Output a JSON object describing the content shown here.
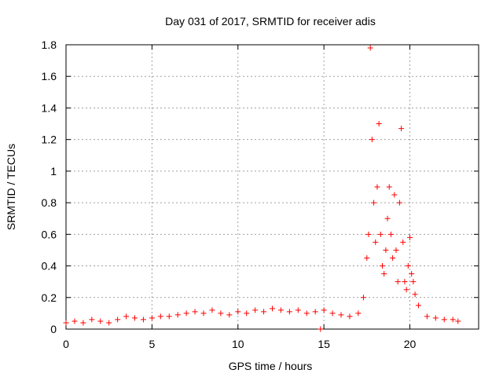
{
  "chart_data": {
    "type": "scatter",
    "title": "Day 031 of 2017, SRMTID for receiver adis",
    "xlabel": "GPS time / hours",
    "ylabel": "SRMTID / TECUs",
    "xlim": [
      0,
      24
    ],
    "ylim": [
      0,
      1.8
    ],
    "xticks": [
      0,
      5,
      10,
      15,
      20
    ],
    "xtick_labels": [
      "0",
      "5",
      "10",
      "15",
      "20"
    ],
    "yticks": [
      0,
      0.2,
      0.4,
      0.6,
      0.8,
      1.0,
      1.2,
      1.4,
      1.6,
      1.8
    ],
    "ytick_labels": [
      "0",
      "0.2",
      "0.4",
      "0.6",
      "0.8",
      "1",
      "1.2",
      "1.4",
      "1.6",
      "1.8"
    ],
    "grid": true,
    "marker": "+",
    "marker_color": "#ff0000",
    "series": [
      {
        "name": "SRMTID",
        "x": [
          0.0,
          0.5,
          1.0,
          1.5,
          2.0,
          2.5,
          3.0,
          3.5,
          4.0,
          4.5,
          5.0,
          5.5,
          6.0,
          6.5,
          7.0,
          7.5,
          8.0,
          8.5,
          9.0,
          9.5,
          10.0,
          10.5,
          11.0,
          11.5,
          12.0,
          12.5,
          13.0,
          13.5,
          14.0,
          14.5,
          14.8,
          15.0,
          15.5,
          16.0,
          16.5,
          17.0,
          17.3,
          17.5,
          17.6,
          17.7,
          17.8,
          17.9,
          18.0,
          18.1,
          18.2,
          18.3,
          18.4,
          18.5,
          18.6,
          18.7,
          18.8,
          18.9,
          19.0,
          19.1,
          19.2,
          19.3,
          19.4,
          19.5,
          19.6,
          19.7,
          19.8,
          19.9,
          20.0,
          20.1,
          20.2,
          20.3,
          20.5,
          21.0,
          21.5,
          22.0,
          22.5,
          22.8
        ],
        "y": [
          0.04,
          0.05,
          0.04,
          0.06,
          0.05,
          0.04,
          0.06,
          0.08,
          0.07,
          0.06,
          0.07,
          0.08,
          0.08,
          0.09,
          0.1,
          0.11,
          0.1,
          0.12,
          0.1,
          0.09,
          0.11,
          0.1,
          0.12,
          0.11,
          0.13,
          0.12,
          0.11,
          0.12,
          0.1,
          0.11,
          0.0,
          0.12,
          0.1,
          0.09,
          0.08,
          0.1,
          0.2,
          0.45,
          0.6,
          1.78,
          1.2,
          0.8,
          0.55,
          0.9,
          1.3,
          0.6,
          0.4,
          0.35,
          0.5,
          0.7,
          0.9,
          0.6,
          0.45,
          0.85,
          0.5,
          0.3,
          0.8,
          1.27,
          0.55,
          0.3,
          0.25,
          0.4,
          0.58,
          0.35,
          0.3,
          0.22,
          0.15,
          0.08,
          0.07,
          0.06,
          0.06,
          0.05
        ]
      }
    ]
  }
}
